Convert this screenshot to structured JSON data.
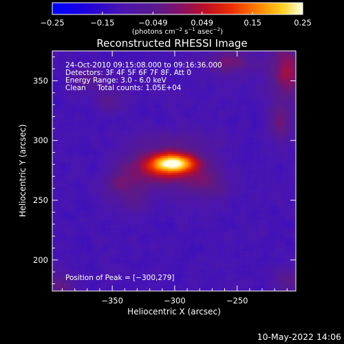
{
  "chart_data": {
    "type": "heatmap",
    "title": "Reconstructed RHESSI Image",
    "xlabel": "Heliocentric X (arcsec)",
    "ylabel": "Heliocentric Y (arcsec)",
    "xlim": [
      -398,
      -203
    ],
    "ylim": [
      174,
      375
    ],
    "xticks": [
      -350,
      -300,
      -250
    ],
    "xtick_labels": [
      "−350",
      "−300",
      "−250"
    ],
    "yticks": [
      200,
      250,
      300,
      350
    ],
    "ytick_labels": [
      "200",
      "250",
      "300",
      "350"
    ],
    "colorbar": {
      "min": -0.25,
      "max": 0.25,
      "ticks": [
        -0.25,
        -0.15,
        -0.049,
        0.049,
        0.15,
        0.25
      ],
      "tick_labels": [
        "−0.25",
        "−0.15",
        "−0.049",
        "0.049",
        "0.15",
        "0.25"
      ],
      "units_prefix": "(photons cm",
      "units_exp1": "−2",
      "units_mid1": " s",
      "units_exp2": "−1",
      "units_mid2": " asec",
      "units_exp3": "−2",
      "units_suffix": ")"
    },
    "annotations": [
      "24-Oct-2010 09:15:08.000 to 09:16:36.000",
      "Detectors: 3F 4F 5F 6F 7F 8F, Att 0",
      "Energy Range: 3.0 - 6.0 keV",
      "Clean     Total counts: 1.05E+04"
    ],
    "peak_label": "Position of Peak = [−300,279]",
    "peak": {
      "x": -300,
      "y": 279
    },
    "sources": [
      {
        "x": -301,
        "y": 281,
        "sx": 13,
        "sy": 6,
        "amp": 0.3
      },
      {
        "x": -322,
        "y": 276,
        "sx": 15,
        "sy": 11,
        "amp": 0.11
      },
      {
        "x": -290,
        "y": 272,
        "sx": 17,
        "sy": 12,
        "amp": 0.09
      },
      {
        "x": -345,
        "y": 263,
        "sx": 9,
        "sy": 11,
        "amp": 0.07
      },
      {
        "x": -300,
        "y": 300,
        "sx": 25,
        "sy": 7,
        "amp": 0.045
      },
      {
        "x": -330,
        "y": 250,
        "sx": 8,
        "sy": 8,
        "amp": 0.05
      },
      {
        "x": -270,
        "y": 262,
        "sx": 10,
        "sy": 9,
        "amp": 0.05
      },
      {
        "x": -210,
        "y": 358,
        "sx": 10,
        "sy": 16,
        "amp": 0.14
      },
      {
        "x": -215,
        "y": 315,
        "sx": 7,
        "sy": 12,
        "amp": 0.09
      },
      {
        "x": -255,
        "y": 365,
        "sx": 14,
        "sy": 7,
        "amp": 0.1
      },
      {
        "x": -352,
        "y": 334,
        "sx": 9,
        "sy": 6,
        "amp": 0.06
      },
      {
        "x": -370,
        "y": 350,
        "sx": 10,
        "sy": 6,
        "amp": 0.07
      },
      {
        "x": -392,
        "y": 178,
        "sx": 8,
        "sy": 8,
        "amp": 0.08
      },
      {
        "x": -208,
        "y": 182,
        "sx": 9,
        "sy": 8,
        "amp": 0.07
      }
    ],
    "background": -0.115
  },
  "footer": {
    "datetime": "10-May-2022 14:06"
  }
}
